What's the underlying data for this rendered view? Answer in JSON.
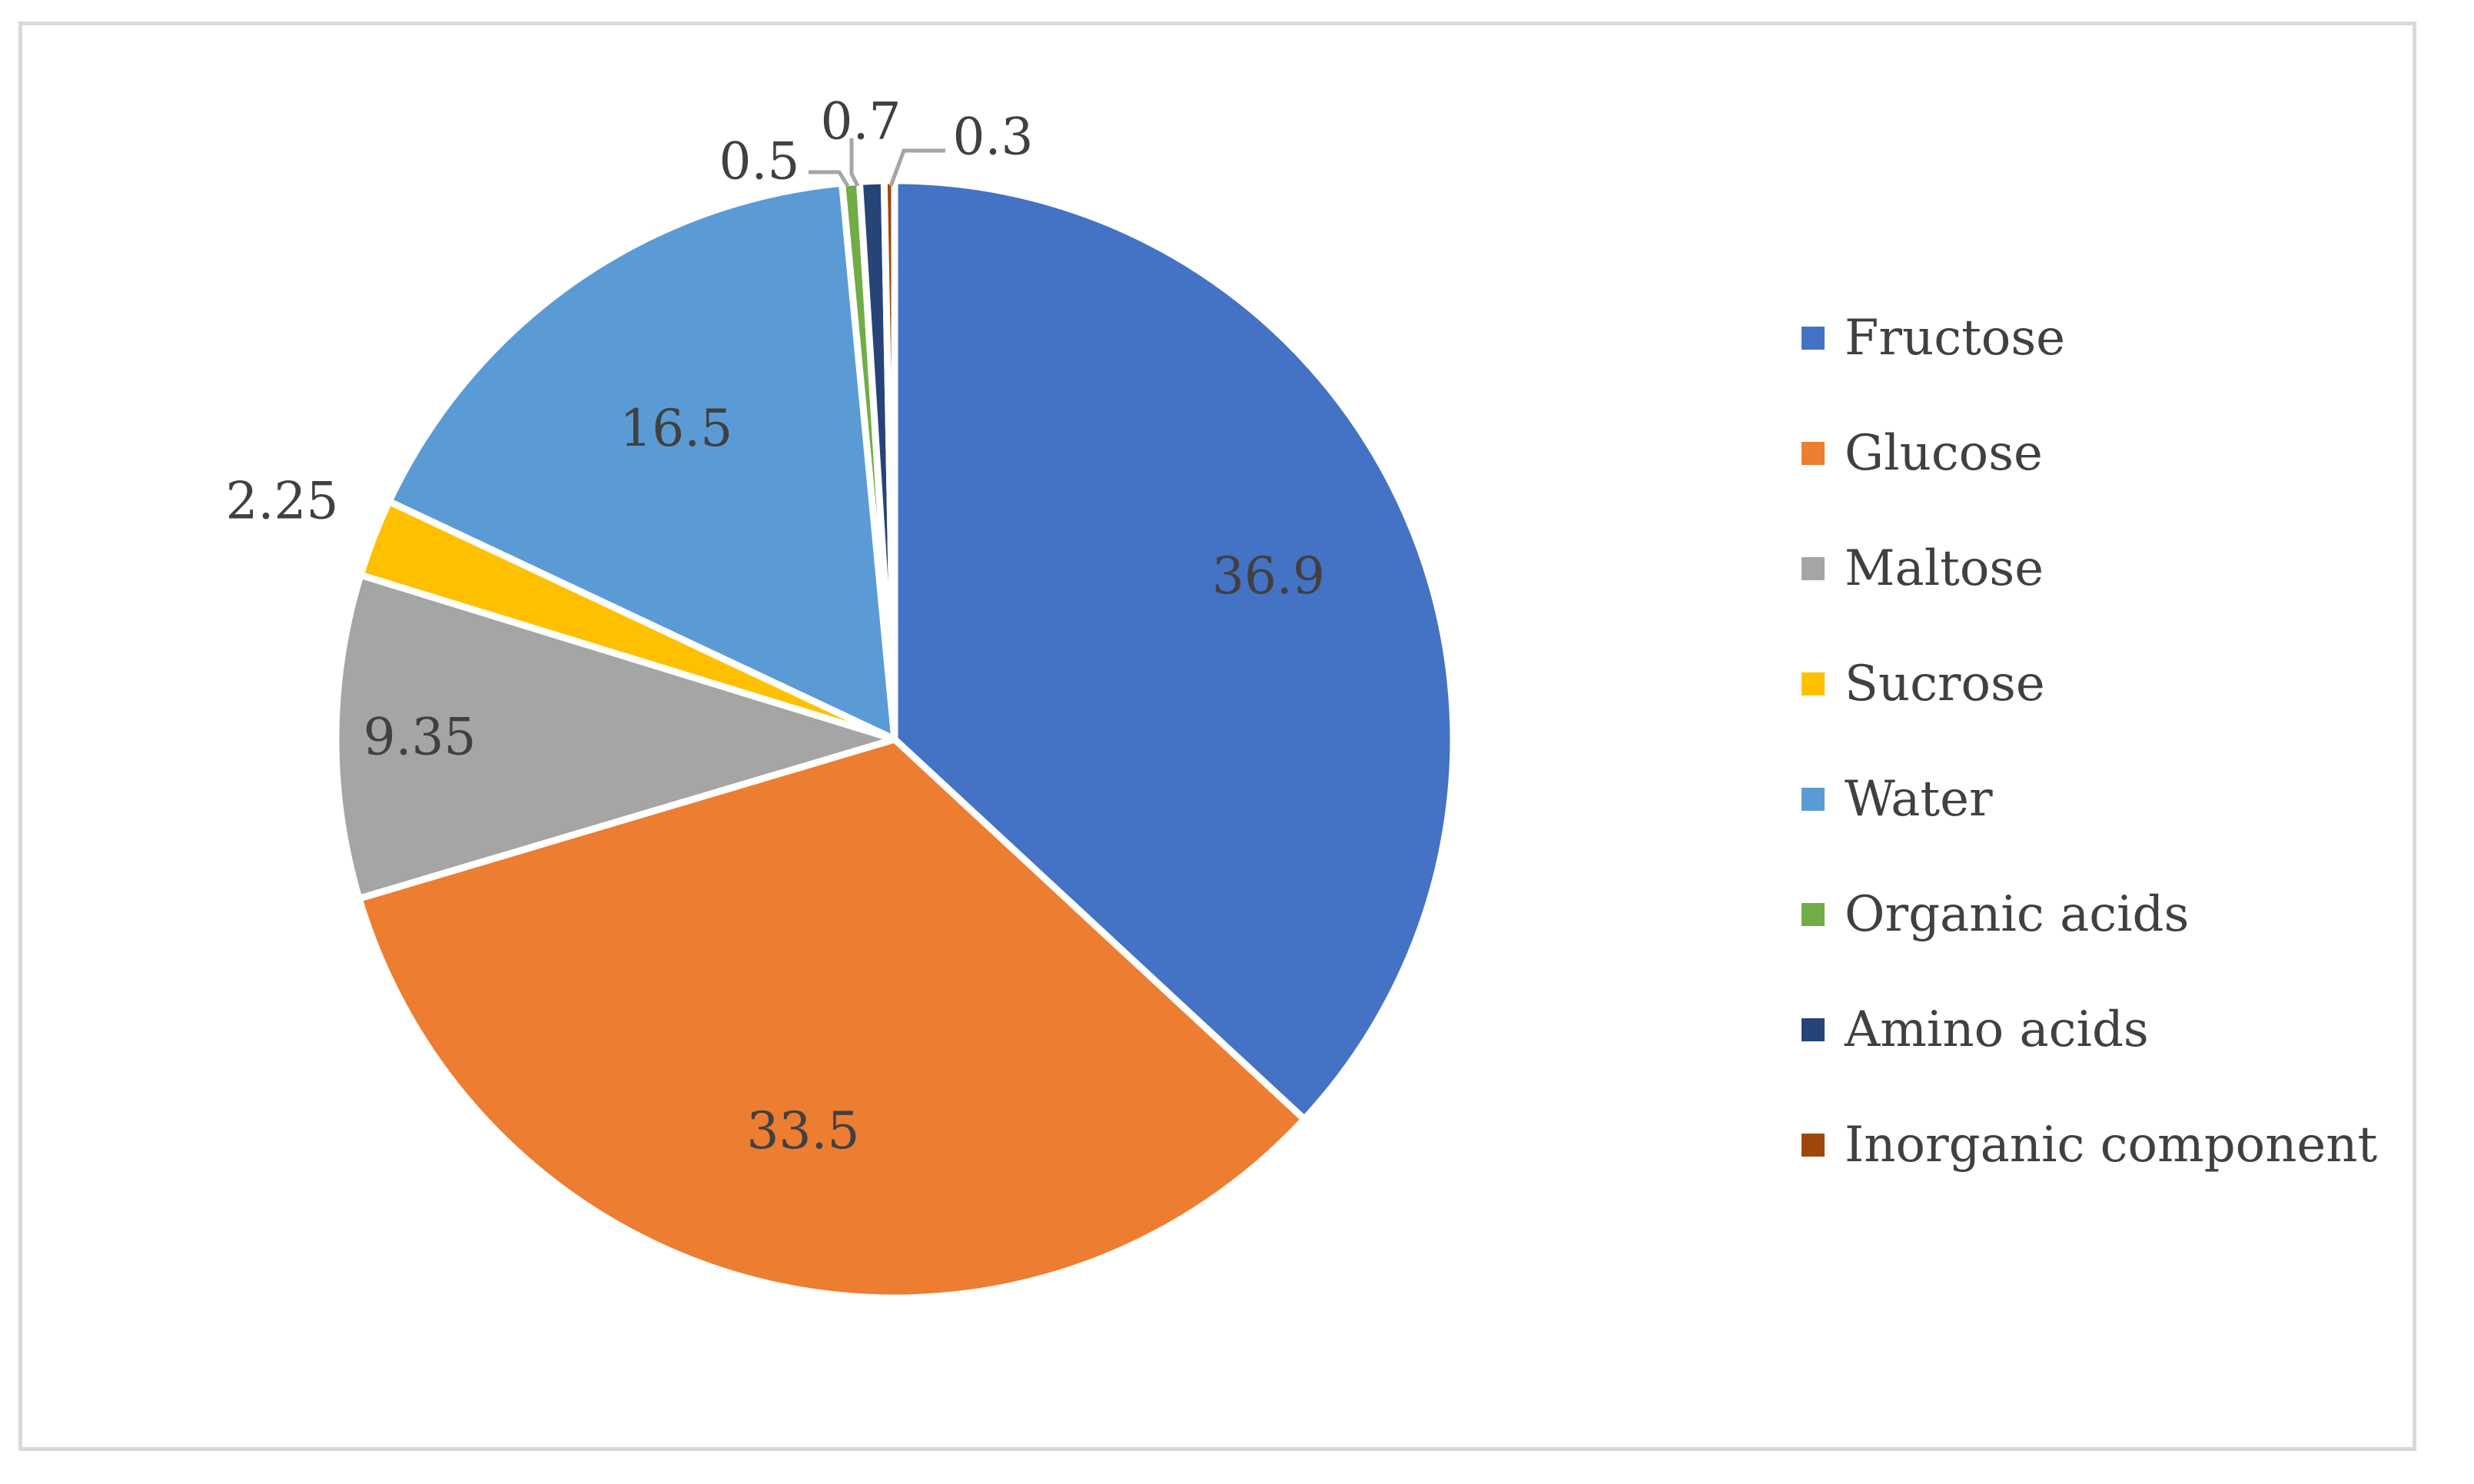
{
  "chart_data": {
    "type": "pie",
    "title": "",
    "categories": [
      "Fructose",
      "Glucose",
      "Maltose",
      "Sucrose",
      "Water",
      "Organic acids",
      "Amino acids",
      "Inorganic component"
    ],
    "values": [
      36.9,
      33.5,
      9.35,
      2.25,
      16.5,
      0.5,
      0.7,
      0.3
    ],
    "colors": [
      "#4472c4",
      "#ed7d31",
      "#a5a5a5",
      "#ffc000",
      "#5b9bd5",
      "#70ad47",
      "#264478",
      "#9e480e"
    ],
    "data_labels": [
      "36.9",
      "33.5",
      "9.35",
      "2.25",
      "16.5",
      "0.5",
      "0.7",
      "0.3"
    ],
    "legend_position": "right",
    "start_angle_deg": 0,
    "direction": "clockwise"
  }
}
